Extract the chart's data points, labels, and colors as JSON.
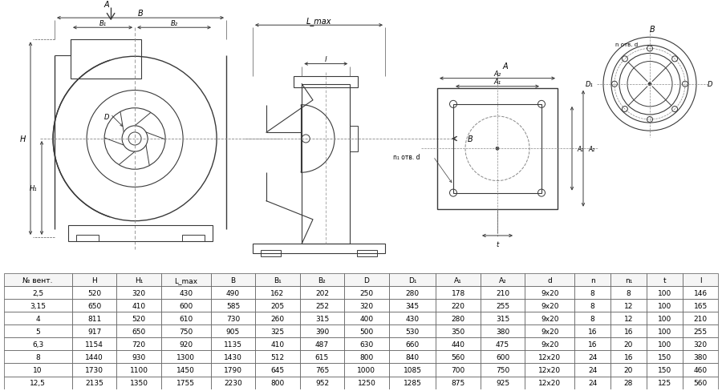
{
  "table_headers": [
    "№ вент.",
    "H",
    "H₁",
    "L_max",
    "B",
    "B₁",
    "B₂",
    "D",
    "D₁",
    "A₁",
    "A₂",
    "d",
    "n",
    "n₁",
    "t",
    "l"
  ],
  "table_data": [
    [
      "2,5",
      "520",
      "320",
      "430",
      "490",
      "162",
      "202",
      "250",
      "280",
      "178",
      "210",
      "9x20",
      "8",
      "8",
      "100",
      "146"
    ],
    [
      "3,15",
      "650",
      "410",
      "600",
      "585",
      "205",
      "252",
      "320",
      "345",
      "220",
      "255",
      "9x20",
      "8",
      "12",
      "100",
      "165"
    ],
    [
      "4",
      "811",
      "520",
      "610",
      "730",
      "260",
      "315",
      "400",
      "430",
      "280",
      "315",
      "9x20",
      "8",
      "12",
      "100",
      "210"
    ],
    [
      "5",
      "917",
      "650",
      "750",
      "905",
      "325",
      "390",
      "500",
      "530",
      "350",
      "380",
      "9x20",
      "16",
      "16",
      "100",
      "255"
    ],
    [
      "6,3",
      "1154",
      "720",
      "920",
      "1135",
      "410",
      "487",
      "630",
      "660",
      "440",
      "475",
      "9x20",
      "16",
      "20",
      "100",
      "320"
    ],
    [
      "8",
      "1440",
      "930",
      "1300",
      "1430",
      "512",
      "615",
      "800",
      "840",
      "560",
      "600",
      "12x20",
      "24",
      "16",
      "150",
      "380"
    ],
    [
      "10",
      "1730",
      "1100",
      "1450",
      "1790",
      "645",
      "765",
      "1000",
      "1085",
      "700",
      "750",
      "12x20",
      "24",
      "20",
      "150",
      "460"
    ],
    [
      "12,5",
      "2135",
      "1350",
      "1755",
      "2230",
      "800",
      "952",
      "1250",
      "1285",
      "875",
      "925",
      "12x20",
      "24",
      "28",
      "125",
      "560"
    ]
  ],
  "bg_color": "#ffffff",
  "line_color": "#3a3a3a",
  "text_color": "#000000"
}
